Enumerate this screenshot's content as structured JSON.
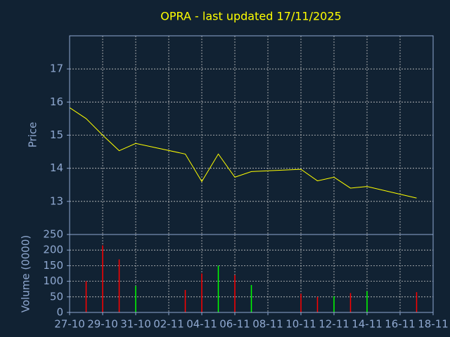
{
  "chart_data": [
    {
      "type": "line",
      "title": "OPRA - last updated 17/11/2025",
      "ylabel": "Price",
      "x": [
        "27-10",
        "28-10",
        "29-10",
        "30-10",
        "31-10",
        "03-11",
        "04-11",
        "05-11",
        "06-11",
        "07-11",
        "10-11",
        "11-11",
        "12-11",
        "13-11",
        "14-11",
        "17-11"
      ],
      "values": [
        15.83,
        15.5,
        15.0,
        14.53,
        14.75,
        14.43,
        13.6,
        14.43,
        13.73,
        13.9,
        13.97,
        13.62,
        13.73,
        13.4,
        13.45,
        13.1
      ],
      "color": "#ffff00",
      "xlim": [
        "27-10",
        "18-11"
      ],
      "ylim": [
        12,
        18
      ],
      "yticks": [
        13,
        14,
        15,
        16,
        17
      ],
      "grid": true
    },
    {
      "type": "bar",
      "ylabel": "Volume (0000)",
      "x": [
        "27-10",
        "28-10",
        "29-10",
        "30-10",
        "31-10",
        "03-11",
        "04-11",
        "05-11",
        "06-11",
        "07-11",
        "10-11",
        "11-11",
        "12-11",
        "13-11",
        "14-11",
        "17-11"
      ],
      "values": [
        null,
        100,
        215,
        170,
        85,
        72,
        125,
        150,
        120,
        88,
        60,
        50,
        52,
        62,
        68,
        65
      ],
      "colors": [
        "#ff0000",
        "#ff0000",
        "#ff0000",
        "#ff0000",
        "#00ff00",
        "#ff0000",
        "#ff0000",
        "#00ff00",
        "#ff0000",
        "#00ff00",
        "#ff0000",
        "#ff0000",
        "#00ff00",
        "#ff0000",
        "#00ff00",
        "#ff0000"
      ],
      "xlim": [
        "27-10",
        "18-11"
      ],
      "xticks": [
        "27-10",
        "29-10",
        "31-10",
        "02-11",
        "04-11",
        "06-11",
        "08-11",
        "10-11",
        "12-11",
        "14-11",
        "16-11",
        "18-11"
      ],
      "ylim": [
        0,
        250
      ],
      "yticks": [
        0,
        50,
        100,
        150,
        200,
        250
      ],
      "grid": true
    }
  ]
}
